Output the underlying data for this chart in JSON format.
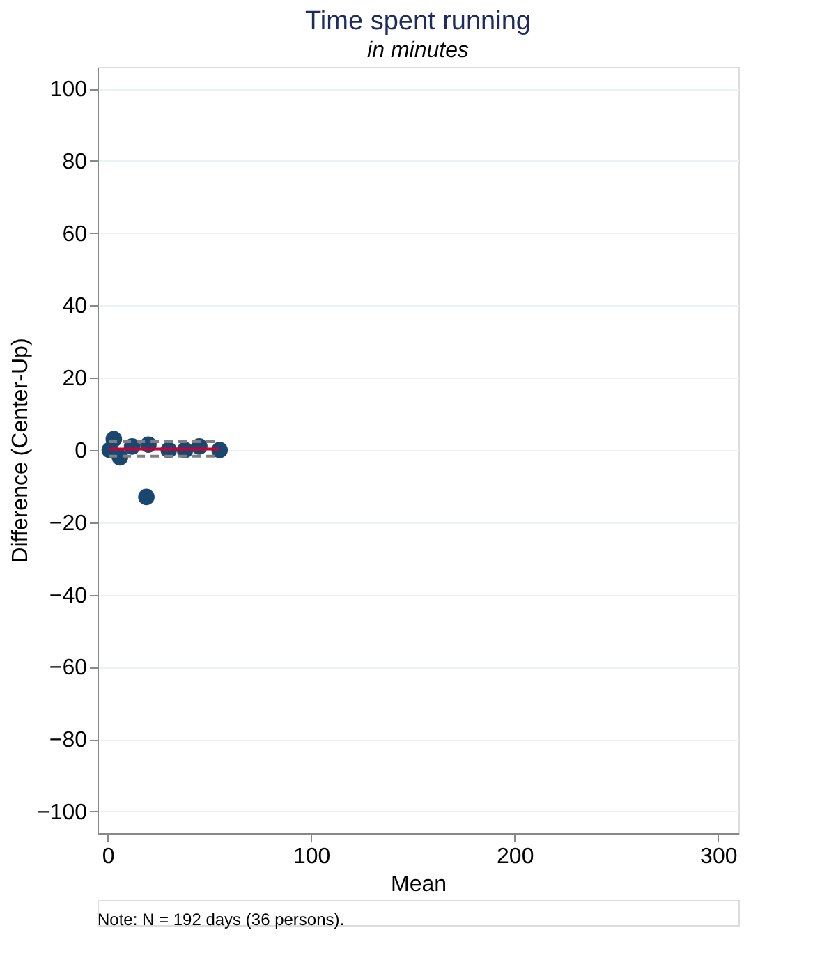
{
  "chart_data": {
    "type": "scatter",
    "title": "Time spent running",
    "subtitle": "in minutes",
    "xlabel": "Mean",
    "ylabel": "Difference (Center-Up)",
    "annotations": [
      "Note: N = 192 days (36 persons)."
    ],
    "xlim": [
      -5,
      310
    ],
    "xticks": [
      0,
      100,
      200,
      300
    ],
    "ylim": [
      -106,
      106
    ],
    "yticks": [
      -100,
      -80,
      -60,
      -40,
      -20,
      0,
      20,
      40,
      60,
      80,
      100
    ],
    "grid": "y",
    "series": [
      {
        "color": "#1a476f",
        "marker": "circle",
        "x": [
          1,
          3,
          6,
          12,
          19,
          20,
          30,
          38,
          45,
          55
        ],
        "values": [
          0,
          3,
          -2,
          1,
          -13,
          1.5,
          0,
          0,
          1,
          0
        ]
      },
      {
        "type": "line",
        "color": "#c10534",
        "line_style": "solid",
        "x": [
          0.5,
          55
        ],
        "values": [
          0.3,
          0.3
        ]
      },
      {
        "type": "line",
        "color": "#7f7f7f",
        "line_style": "dashed",
        "x": [
          0.5,
          55
        ],
        "values": [
          2.3,
          2.3
        ]
      },
      {
        "type": "line",
        "color": "#7f7f7f",
        "line_style": "dashed",
        "x": [
          0.5,
          55
        ],
        "values": [
          -1.7,
          -1.7
        ]
      }
    ]
  }
}
